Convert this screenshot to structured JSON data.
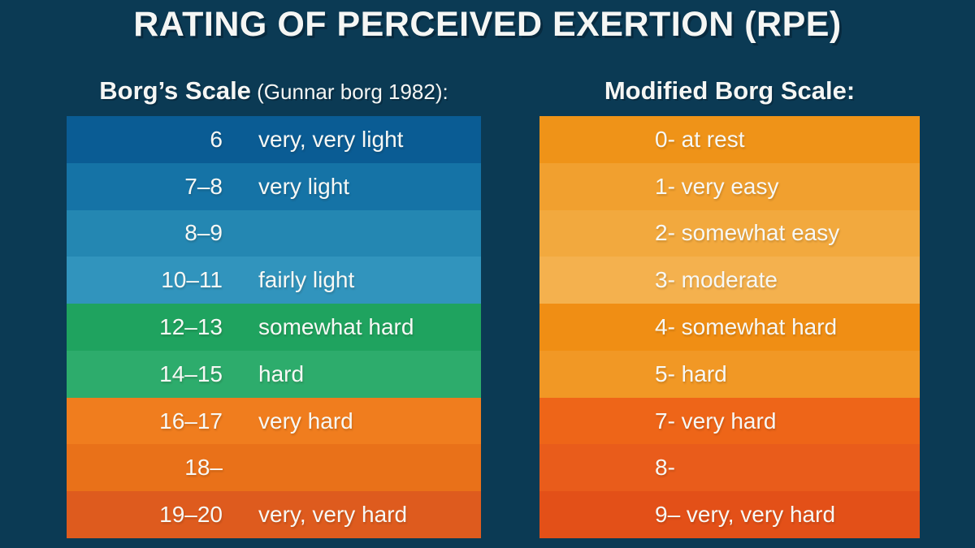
{
  "title": "RATING OF PERCEIVED EXERTION (RPE)",
  "colors": {
    "background": "#0b3a54",
    "text": "#f5f6f4"
  },
  "borg": {
    "heading": "Borg’s Scale",
    "subheading": " (Gunnar borg 1982):",
    "rows": [
      {
        "value": "6",
        "label": "very, very light",
        "color": "#0a5c94"
      },
      {
        "value": "7–8",
        "label": "very light",
        "color": "#1573a6"
      },
      {
        "value": "8–9",
        "label": "",
        "color": "#2487b2"
      },
      {
        "value": "10–11",
        "label": "fairly light",
        "color": "#3194bd"
      },
      {
        "value": "12–13",
        "label": "somewhat hard",
        "color": "#1fa35f"
      },
      {
        "value": "14–15",
        "label": "hard",
        "color": "#2dac6c"
      },
      {
        "value": "16–17",
        "label": "very hard",
        "color": "#f07d1e"
      },
      {
        "value": "18–",
        "label": "",
        "color": "#e97119"
      },
      {
        "value": "19–20",
        "label": "very, very hard",
        "color": "#de5b1e"
      }
    ]
  },
  "modified": {
    "heading": "Modified Borg Scale:",
    "rows": [
      {
        "text": "0- at rest",
        "color": "#ef9318"
      },
      {
        "text": "1- very easy",
        "color": "#f1a02f"
      },
      {
        "text": "2- somewhat easy",
        "color": "#f2a93e"
      },
      {
        "text": "3- moderate",
        "color": "#f4b14e"
      },
      {
        "text": "4- somewhat hard",
        "color": "#f08e14"
      },
      {
        "text": "5- hard",
        "color": "#f19825"
      },
      {
        "text": "7- very hard",
        "color": "#ee6518"
      },
      {
        "text": "8-",
        "color": "#e95c1b"
      },
      {
        "text": "9– very, very hard",
        "color": "#e35018"
      }
    ]
  }
}
